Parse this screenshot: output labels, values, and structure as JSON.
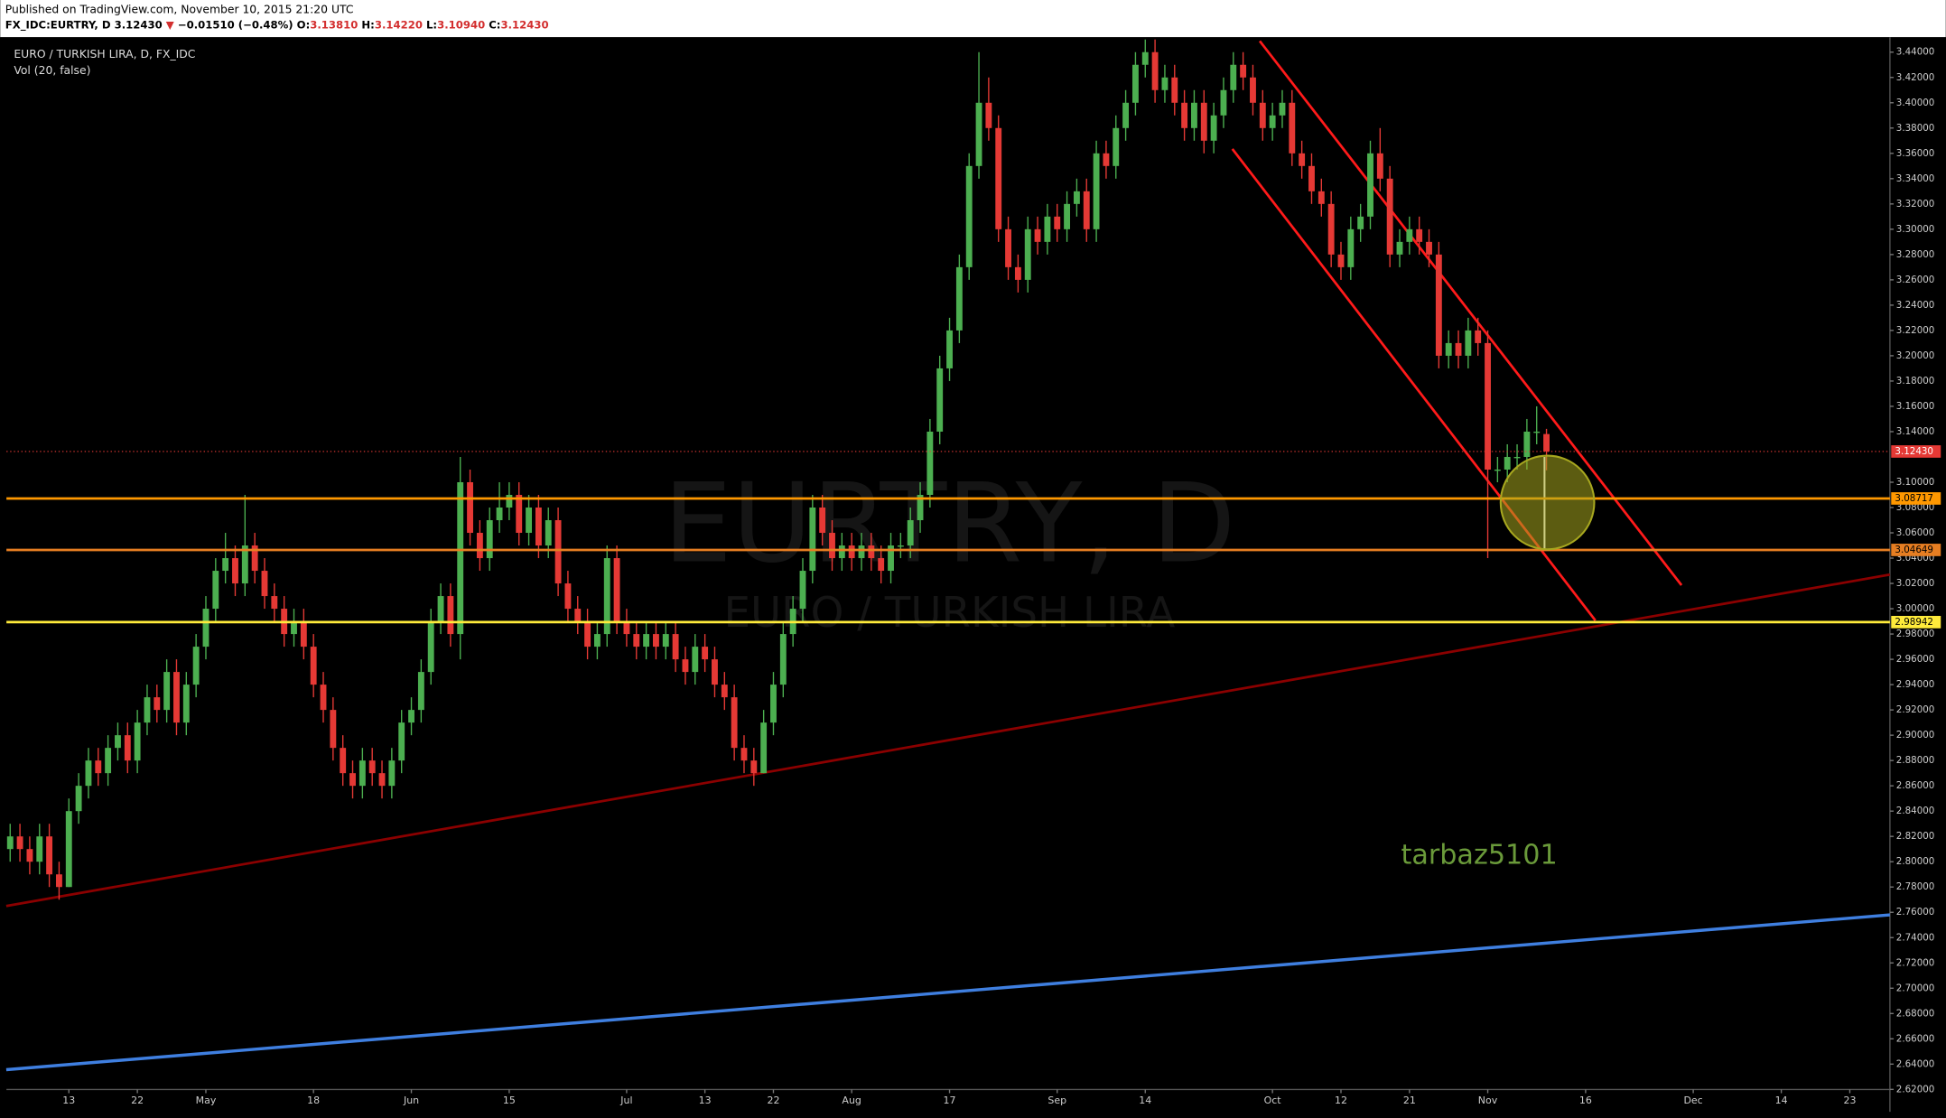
{
  "header": {
    "published": "Published on TradingView.com, November 10, 2015 21:20 UTC",
    "quote": [
      "FX_IDC:EURTRY, D",
      " 3.12430 ",
      "▼",
      " −0.01510 (−0.48%) ",
      "O:",
      "3.13810",
      " H:",
      "3.14220",
      " L:",
      "3.10940",
      " C:",
      "3.12430"
    ],
    "quote_colors": [
      "#000",
      "#000",
      "#d32f2f",
      "#000",
      "#000",
      "#d32f2f",
      "#000",
      "#d32f2f",
      "#000",
      "#d32f2f",
      "#000",
      "#d32f2f"
    ]
  },
  "chart_data": {
    "type": "candlestick",
    "title": "EURO / TURKISH LIRA, D, FX_IDC",
    "subtitle": "Vol (20, false)",
    "watermark": "EURTRY, D",
    "watermark_sub": "EURO / TURKISH LIRA",
    "annotation": "tarbaz5101",
    "up_color": "#4caf50",
    "down_color": "#e53935",
    "xlim": [
      -0.38,
      192.1
    ],
    "ylim": [
      2.6023,
      3.4518
    ],
    "xticks": [
      {
        "value": 6,
        "label": "13"
      },
      {
        "value": 13,
        "label": "22"
      },
      {
        "value": 20,
        "label": "May"
      },
      {
        "value": 31,
        "label": "18"
      },
      {
        "value": 41,
        "label": "Jun"
      },
      {
        "value": 51,
        "label": "15"
      },
      {
        "value": 63,
        "label": "Jul"
      },
      {
        "value": 71,
        "label": "13"
      },
      {
        "value": 78,
        "label": "22"
      },
      {
        "value": 86,
        "label": "Aug"
      },
      {
        "value": 96,
        "label": "17"
      },
      {
        "value": 107,
        "label": "Sep"
      },
      {
        "value": 116,
        "label": "14"
      },
      {
        "value": 129,
        "label": "Oct"
      },
      {
        "value": 136,
        "label": "12"
      },
      {
        "value": 143,
        "label": "21"
      },
      {
        "value": 151,
        "label": "Nov"
      },
      {
        "value": 161,
        "label": "16"
      },
      {
        "value": 172,
        "label": "Dec"
      },
      {
        "value": 181,
        "label": "14"
      },
      {
        "value": 188,
        "label": "23"
      }
    ],
    "yticks": [
      {
        "value": 3.44,
        "label": "3.44000"
      },
      {
        "value": 3.42,
        "label": "3.42000"
      },
      {
        "value": 3.4,
        "label": "3.40000"
      },
      {
        "value": 3.38,
        "label": "3.38000"
      },
      {
        "value": 3.36,
        "label": "3.36000"
      },
      {
        "value": 3.34,
        "label": "3.34000"
      },
      {
        "value": 3.32,
        "label": "3.32000"
      },
      {
        "value": 3.3,
        "label": "3.30000"
      },
      {
        "value": 3.28,
        "label": "3.28000"
      },
      {
        "value": 3.26,
        "label": "3.26000"
      },
      {
        "value": 3.24,
        "label": "3.24000"
      },
      {
        "value": 3.22,
        "label": "3.22000"
      },
      {
        "value": 3.2,
        "label": "3.20000"
      },
      {
        "value": 3.18,
        "label": "3.18000"
      },
      {
        "value": 3.16,
        "label": "3.16000"
      },
      {
        "value": 3.14,
        "label": "3.14000"
      },
      {
        "value": 3.1,
        "label": "3.10000"
      },
      {
        "value": 3.08,
        "label": "3.08000"
      },
      {
        "value": 3.06,
        "label": "3.06000"
      },
      {
        "value": 3.04,
        "label": "3.04000"
      },
      {
        "value": 3.02,
        "label": "3.02000"
      },
      {
        "value": 3.0,
        "label": "3.00000"
      },
      {
        "value": 2.98,
        "label": "2.98000"
      },
      {
        "value": 2.96,
        "label": "2.96000"
      },
      {
        "value": 2.94,
        "label": "2.94000"
      },
      {
        "value": 2.92,
        "label": "2.92000"
      },
      {
        "value": 2.9,
        "label": "2.90000"
      },
      {
        "value": 2.88,
        "label": "2.88000"
      },
      {
        "value": 2.86,
        "label": "2.86000"
      },
      {
        "value": 2.84,
        "label": "2.84000"
      },
      {
        "value": 2.82,
        "label": "2.82000"
      },
      {
        "value": 2.8,
        "label": "2.80000"
      },
      {
        "value": 2.78,
        "label": "2.78000"
      },
      {
        "value": 2.76,
        "label": "2.76000"
      },
      {
        "value": 2.74,
        "label": "2.74000"
      },
      {
        "value": 2.72,
        "label": "2.72000"
      },
      {
        "value": 2.7,
        "label": "2.70000"
      },
      {
        "value": 2.68,
        "label": "2.68000"
      },
      {
        "value": 2.66,
        "label": "2.66000"
      },
      {
        "value": 2.64,
        "label": "2.64000"
      },
      {
        "value": 2.62,
        "label": "2.62000"
      }
    ],
    "price_lines": [
      {
        "value": 3.1243,
        "label": "3.12430",
        "color": "#e53935",
        "text_color": "#fff",
        "dashed": true
      },
      {
        "value": 3.08717,
        "label": "3.08717",
        "color": "#ff9800",
        "text_color": "#000",
        "dashed": false
      },
      {
        "value": 3.04649,
        "label": "3.04649",
        "color": "#e67e22",
        "text_color": "#000",
        "dashed": false
      },
      {
        "value": 2.98942,
        "label": "2.98942",
        "color": "#ffeb3b",
        "text_color": "#000",
        "dashed": false
      }
    ],
    "drawings": [
      {
        "points": [
          [
            127.7,
            3.4488
          ],
          [
            170.8,
            3.0186
          ]
        ],
        "color": "#ff1a1a",
        "width": 2
      },
      {
        "points": [
          [
            124.9,
            3.3635
          ],
          [
            162.0,
            2.9907
          ]
        ],
        "color": "#ff1a1a",
        "width": 2
      },
      {
        "points": [
          [
            -0.4,
            2.765
          ],
          [
            192.1,
            3.027
          ]
        ],
        "color": "#8b0000",
        "width": 2
      },
      {
        "points": [
          [
            -0.4,
            2.6356
          ],
          [
            192.1,
            2.758
          ]
        ],
        "color": "#3f7fe0",
        "width": 2.5
      },
      {
        "points": [
          [
            156.8,
            3.12
          ],
          [
            156.8,
            3.046
          ]
        ],
        "color": "#ffffff",
        "width": 1.5
      }
    ],
    "circle": {
      "center": [
        157.1,
        3.084
      ],
      "radius": 0.037,
      "color": "#a7a71f"
    },
    "ohlc": [
      [
        2.81,
        2.83,
        2.8,
        2.82
      ],
      [
        2.82,
        2.83,
        2.8,
        2.81
      ],
      [
        2.81,
        2.82,
        2.79,
        2.8
      ],
      [
        2.8,
        2.83,
        2.79,
        2.82
      ],
      [
        2.82,
        2.83,
        2.78,
        2.79
      ],
      [
        2.79,
        2.8,
        2.77,
        2.78
      ],
      [
        2.78,
        2.85,
        2.78,
        2.84
      ],
      [
        2.84,
        2.87,
        2.83,
        2.86
      ],
      [
        2.86,
        2.89,
        2.85,
        2.88
      ],
      [
        2.88,
        2.89,
        2.86,
        2.87
      ],
      [
        2.87,
        2.9,
        2.86,
        2.89
      ],
      [
        2.89,
        2.91,
        2.88,
        2.9
      ],
      [
        2.9,
        2.91,
        2.87,
        2.88
      ],
      [
        2.88,
        2.92,
        2.87,
        2.91
      ],
      [
        2.91,
        2.94,
        2.9,
        2.93
      ],
      [
        2.93,
        2.94,
        2.91,
        2.92
      ],
      [
        2.92,
        2.96,
        2.91,
        2.95
      ],
      [
        2.95,
        2.96,
        2.9,
        2.91
      ],
      [
        2.91,
        2.95,
        2.9,
        2.94
      ],
      [
        2.94,
        2.98,
        2.93,
        2.97
      ],
      [
        2.97,
        3.01,
        2.96,
        3.0
      ],
      [
        3.0,
        3.04,
        2.99,
        3.03
      ],
      [
        3.03,
        3.06,
        3.02,
        3.04
      ],
      [
        3.04,
        3.05,
        3.01,
        3.02
      ],
      [
        3.02,
        3.09,
        3.01,
        3.05
      ],
      [
        3.05,
        3.06,
        3.02,
        3.03
      ],
      [
        3.03,
        3.04,
        3.0,
        3.01
      ],
      [
        3.01,
        3.02,
        2.99,
        3.0
      ],
      [
        3.0,
        3.01,
        2.97,
        2.98
      ],
      [
        2.98,
        3.0,
        2.97,
        2.99
      ],
      [
        2.99,
        3.0,
        2.96,
        2.97
      ],
      [
        2.97,
        2.98,
        2.93,
        2.94
      ],
      [
        2.94,
        2.95,
        2.91,
        2.92
      ],
      [
        2.92,
        2.93,
        2.88,
        2.89
      ],
      [
        2.89,
        2.9,
        2.86,
        2.87
      ],
      [
        2.87,
        2.88,
        2.85,
        2.86
      ],
      [
        2.86,
        2.89,
        2.85,
        2.88
      ],
      [
        2.88,
        2.89,
        2.86,
        2.87
      ],
      [
        2.87,
        2.88,
        2.85,
        2.86
      ],
      [
        2.86,
        2.89,
        2.85,
        2.88
      ],
      [
        2.88,
        2.92,
        2.87,
        2.91
      ],
      [
        2.91,
        2.93,
        2.9,
        2.92
      ],
      [
        2.92,
        2.96,
        2.91,
        2.95
      ],
      [
        2.95,
        3.0,
        2.94,
        2.99
      ],
      [
        2.99,
        3.02,
        2.98,
        3.01
      ],
      [
        3.01,
        3.02,
        2.97,
        2.98
      ],
      [
        2.98,
        3.12,
        2.96,
        3.1
      ],
      [
        3.1,
        3.11,
        3.05,
        3.06
      ],
      [
        3.06,
        3.07,
        3.03,
        3.04
      ],
      [
        3.04,
        3.08,
        3.03,
        3.07
      ],
      [
        3.07,
        3.1,
        3.06,
        3.08
      ],
      [
        3.08,
        3.1,
        3.07,
        3.09
      ],
      [
        3.09,
        3.1,
        3.05,
        3.06
      ],
      [
        3.06,
        3.09,
        3.05,
        3.08
      ],
      [
        3.08,
        3.09,
        3.04,
        3.05
      ],
      [
        3.05,
        3.08,
        3.04,
        3.07
      ],
      [
        3.07,
        3.08,
        3.01,
        3.02
      ],
      [
        3.02,
        3.03,
        2.99,
        3.0
      ],
      [
        3.0,
        3.01,
        2.98,
        2.99
      ],
      [
        2.99,
        3.0,
        2.96,
        2.97
      ],
      [
        2.97,
        2.99,
        2.96,
        2.98
      ],
      [
        2.98,
        3.05,
        2.97,
        3.04
      ],
      [
        3.04,
        3.05,
        2.98,
        2.99
      ],
      [
        2.99,
        3.0,
        2.97,
        2.98
      ],
      [
        2.98,
        2.99,
        2.96,
        2.97
      ],
      [
        2.97,
        2.99,
        2.96,
        2.98
      ],
      [
        2.98,
        2.99,
        2.96,
        2.97
      ],
      [
        2.97,
        2.99,
        2.96,
        2.98
      ],
      [
        2.98,
        2.99,
        2.95,
        2.96
      ],
      [
        2.96,
        2.97,
        2.94,
        2.95
      ],
      [
        2.95,
        2.98,
        2.94,
        2.97
      ],
      [
        2.97,
        2.98,
        2.95,
        2.96
      ],
      [
        2.96,
        2.97,
        2.93,
        2.94
      ],
      [
        2.94,
        2.95,
        2.92,
        2.93
      ],
      [
        2.93,
        2.94,
        2.88,
        2.89
      ],
      [
        2.89,
        2.9,
        2.87,
        2.88
      ],
      [
        2.88,
        2.89,
        2.86,
        2.87
      ],
      [
        2.87,
        2.92,
        2.87,
        2.91
      ],
      [
        2.91,
        2.95,
        2.9,
        2.94
      ],
      [
        2.94,
        2.99,
        2.93,
        2.98
      ],
      [
        2.98,
        3.01,
        2.97,
        3.0
      ],
      [
        3.0,
        3.04,
        2.99,
        3.03
      ],
      [
        3.03,
        3.09,
        3.02,
        3.08
      ],
      [
        3.08,
        3.09,
        3.05,
        3.06
      ],
      [
        3.06,
        3.07,
        3.03,
        3.04
      ],
      [
        3.04,
        3.06,
        3.03,
        3.05
      ],
      [
        3.05,
        3.06,
        3.03,
        3.04
      ],
      [
        3.04,
        3.06,
        3.03,
        3.05
      ],
      [
        3.05,
        3.06,
        3.03,
        3.04
      ],
      [
        3.04,
        3.05,
        3.02,
        3.03
      ],
      [
        3.03,
        3.06,
        3.02,
        3.05
      ],
      [
        3.05,
        3.06,
        3.04,
        3.05
      ],
      [
        3.05,
        3.08,
        3.04,
        3.07
      ],
      [
        3.07,
        3.1,
        3.06,
        3.09
      ],
      [
        3.09,
        3.15,
        3.08,
        3.14
      ],
      [
        3.14,
        3.2,
        3.13,
        3.19
      ],
      [
        3.19,
        3.23,
        3.18,
        3.22
      ],
      [
        3.22,
        3.28,
        3.21,
        3.27
      ],
      [
        3.27,
        3.36,
        3.26,
        3.35
      ],
      [
        3.35,
        3.44,
        3.34,
        3.4
      ],
      [
        3.4,
        3.42,
        3.37,
        3.38
      ],
      [
        3.38,
        3.39,
        3.29,
        3.3
      ],
      [
        3.3,
        3.31,
        3.26,
        3.27
      ],
      [
        3.27,
        3.28,
        3.25,
        3.26
      ],
      [
        3.26,
        3.31,
        3.25,
        3.3
      ],
      [
        3.3,
        3.31,
        3.28,
        3.29
      ],
      [
        3.29,
        3.32,
        3.28,
        3.31
      ],
      [
        3.31,
        3.32,
        3.29,
        3.3
      ],
      [
        3.3,
        3.33,
        3.29,
        3.32
      ],
      [
        3.32,
        3.34,
        3.31,
        3.33
      ],
      [
        3.33,
        3.34,
        3.29,
        3.3
      ],
      [
        3.3,
        3.37,
        3.29,
        3.36
      ],
      [
        3.36,
        3.37,
        3.34,
        3.35
      ],
      [
        3.35,
        3.39,
        3.34,
        3.38
      ],
      [
        3.38,
        3.41,
        3.37,
        3.4
      ],
      [
        3.4,
        3.44,
        3.39,
        3.43
      ],
      [
        3.43,
        3.45,
        3.42,
        3.44
      ],
      [
        3.44,
        3.45,
        3.4,
        3.41
      ],
      [
        3.41,
        3.43,
        3.4,
        3.42
      ],
      [
        3.42,
        3.43,
        3.39,
        3.4
      ],
      [
        3.4,
        3.41,
        3.37,
        3.38
      ],
      [
        3.38,
        3.41,
        3.37,
        3.4
      ],
      [
        3.4,
        3.41,
        3.36,
        3.37
      ],
      [
        3.37,
        3.4,
        3.36,
        3.39
      ],
      [
        3.39,
        3.42,
        3.38,
        3.41
      ],
      [
        3.41,
        3.44,
        3.4,
        3.43
      ],
      [
        3.43,
        3.44,
        3.41,
        3.42
      ],
      [
        3.42,
        3.43,
        3.39,
        3.4
      ],
      [
        3.4,
        3.41,
        3.37,
        3.38
      ],
      [
        3.38,
        3.4,
        3.37,
        3.39
      ],
      [
        3.39,
        3.41,
        3.38,
        3.4
      ],
      [
        3.4,
        3.41,
        3.35,
        3.36
      ],
      [
        3.36,
        3.37,
        3.34,
        3.35
      ],
      [
        3.35,
        3.36,
        3.32,
        3.33
      ],
      [
        3.33,
        3.34,
        3.31,
        3.32
      ],
      [
        3.32,
        3.33,
        3.27,
        3.28
      ],
      [
        3.28,
        3.29,
        3.26,
        3.27
      ],
      [
        3.27,
        3.31,
        3.26,
        3.3
      ],
      [
        3.3,
        3.32,
        3.29,
        3.31
      ],
      [
        3.31,
        3.37,
        3.3,
        3.36
      ],
      [
        3.36,
        3.38,
        3.33,
        3.34
      ],
      [
        3.34,
        3.35,
        3.27,
        3.28
      ],
      [
        3.28,
        3.3,
        3.27,
        3.29
      ],
      [
        3.29,
        3.31,
        3.28,
        3.3
      ],
      [
        3.3,
        3.31,
        3.28,
        3.29
      ],
      [
        3.29,
        3.3,
        3.27,
        3.28
      ],
      [
        3.28,
        3.29,
        3.19,
        3.2
      ],
      [
        3.2,
        3.22,
        3.19,
        3.21
      ],
      [
        3.21,
        3.22,
        3.19,
        3.2
      ],
      [
        3.2,
        3.23,
        3.19,
        3.22
      ],
      [
        3.22,
        3.23,
        3.2,
        3.21
      ],
      [
        3.21,
        3.22,
        3.04,
        3.11
      ],
      [
        3.11,
        3.12,
        3.1,
        3.11
      ],
      [
        3.11,
        3.13,
        3.1,
        3.12
      ],
      [
        3.12,
        3.13,
        3.11,
        3.12
      ],
      [
        3.12,
        3.15,
        3.11,
        3.14
      ],
      [
        3.14,
        3.16,
        3.13,
        3.14
      ],
      [
        3.1381,
        3.1422,
        3.1094,
        3.1243
      ]
    ]
  }
}
